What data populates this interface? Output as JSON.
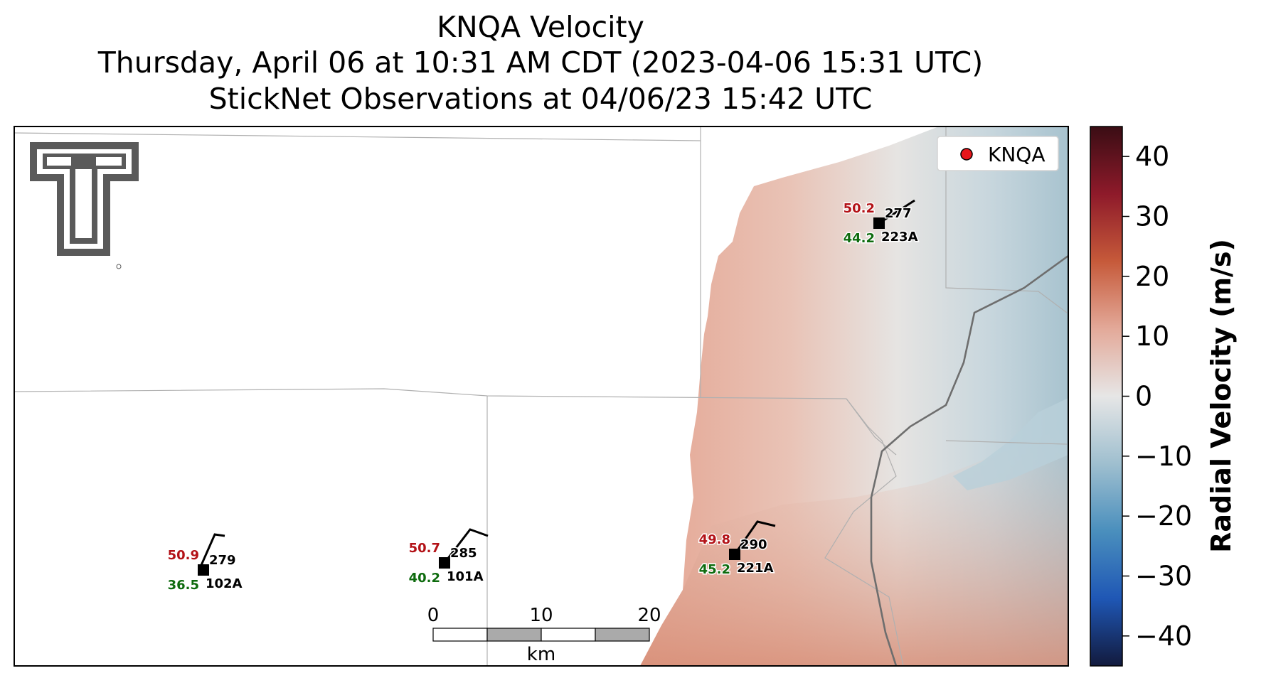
{
  "title": {
    "line1": "KNQA Velocity",
    "line2": "Thursday, April 06 at 10:31 AM CDT (2023-04-06 15:31 UTC)",
    "line3": "StickNet Observations at 04/06/23 15:42 UTC"
  },
  "legend": {
    "label": "KNQA",
    "marker_color": "#e8161b"
  },
  "scale_bar": {
    "ticks": [
      "0",
      "10",
      "20"
    ],
    "unit": "km"
  },
  "colorbar": {
    "label": "Radial Velocity (m/s)",
    "ticks": [
      "40",
      "30",
      "20",
      "10",
      "0",
      "−10",
      "−20",
      "−30",
      "−40"
    ],
    "range": [
      -45,
      45
    ],
    "colors": [
      "#121a3d",
      "#1f57b5",
      "#4a8fbd",
      "#9fbfcf",
      "#e6e6e6",
      "#e3a999",
      "#c65a3a",
      "#8e1a2a",
      "#3a0d14"
    ]
  },
  "stations": [
    {
      "id": "102A",
      "temp": "50.9",
      "dew": "36.5",
      "dir": "279"
    },
    {
      "id": "101A",
      "temp": "50.7",
      "dew": "40.2",
      "dir": "285"
    },
    {
      "id": "221A",
      "temp": "49.8",
      "dew": "45.2",
      "dir": "290"
    },
    {
      "id": "223A",
      "temp": "50.2",
      "dew": "44.2",
      "dir": "277"
    }
  ],
  "colors": {
    "temp": "#b31217",
    "dew": "#0e6b0e",
    "station_id": "#000000"
  }
}
